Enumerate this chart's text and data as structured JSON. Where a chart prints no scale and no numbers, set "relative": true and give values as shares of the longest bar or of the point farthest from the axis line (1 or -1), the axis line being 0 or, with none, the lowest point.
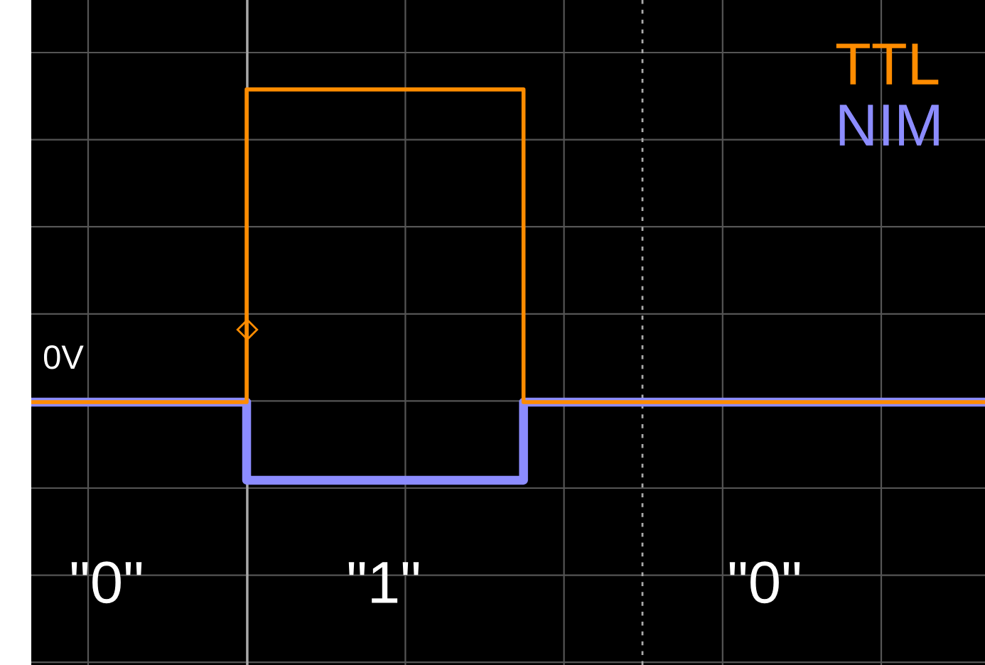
{
  "chart_data": {
    "type": "step",
    "relative": true,
    "categories": [
      null,
      null,
      null,
      null,
      null,
      null,
      null,
      null,
      null,
      null,
      null,
      null,
      null,
      null,
      null,
      null,
      null,
      null,
      null,
      null,
      null,
      null,
      null,
      null,
      null,
      null,
      null,
      null,
      null,
      null,
      null,
      null
    ],
    "series": [
      {
        "name": "TTL",
        "color": "#ff8c00",
        "values": [
          0,
          0,
          0,
          0,
          0,
          0,
          0,
          1,
          1,
          1,
          1,
          1,
          1,
          1,
          1,
          1,
          0,
          0,
          0,
          0,
          0,
          0,
          0,
          0,
          0,
          0,
          0,
          0,
          0,
          0,
          0,
          0
        ]
      },
      {
        "name": "NIM",
        "color": "#8c8cff",
        "values": [
          0,
          0,
          0,
          0,
          0,
          0,
          0,
          -0.25,
          -0.25,
          -0.25,
          -0.25,
          -0.25,
          -0.25,
          -0.25,
          -0.25,
          -0.25,
          0,
          0,
          0,
          0,
          0,
          0,
          0,
          0,
          0,
          0,
          0,
          0,
          0,
          0,
          0,
          0
        ]
      }
    ],
    "annotations": [
      "0V",
      "\"0\"",
      "\"1\"",
      "\"0\""
    ],
    "legend": "top right",
    "grid": true,
    "tick_labels": false
  }
}
